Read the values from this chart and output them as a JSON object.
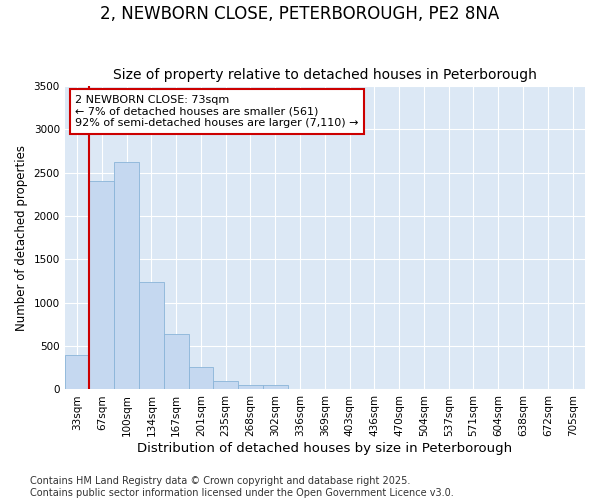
{
  "title": "2, NEWBORN CLOSE, PETERBOROUGH, PE2 8NA",
  "subtitle": "Size of property relative to detached houses in Peterborough",
  "xlabel": "Distribution of detached houses by size in Peterborough",
  "ylabel": "Number of detached properties",
  "categories": [
    "33sqm",
    "67sqm",
    "100sqm",
    "134sqm",
    "167sqm",
    "201sqm",
    "235sqm",
    "268sqm",
    "302sqm",
    "336sqm",
    "369sqm",
    "403sqm",
    "436sqm",
    "470sqm",
    "504sqm",
    "537sqm",
    "571sqm",
    "604sqm",
    "638sqm",
    "672sqm",
    "705sqm"
  ],
  "values": [
    400,
    2400,
    2620,
    1240,
    640,
    260,
    100,
    55,
    55,
    0,
    0,
    0,
    0,
    0,
    0,
    0,
    0,
    0,
    0,
    0,
    0
  ],
  "bar_color": "#c5d8f0",
  "bar_edge_color": "#8ab4d8",
  "vline_x": 0.5,
  "vline_color": "#cc0000",
  "annotation_text": "2 NEWBORN CLOSE: 73sqm\n← 7% of detached houses are smaller (561)\n92% of semi-detached houses are larger (7,110) →",
  "annotation_box_color": "#ffffff",
  "annotation_box_edge": "#cc0000",
  "ylim": [
    0,
    3500
  ],
  "yticks": [
    0,
    500,
    1000,
    1500,
    2000,
    2500,
    3000,
    3500
  ],
  "figure_bg": "#ffffff",
  "plot_bg": "#dce8f5",
  "grid_color": "#ffffff",
  "footer_line1": "Contains HM Land Registry data © Crown copyright and database right 2025.",
  "footer_line2": "Contains public sector information licensed under the Open Government Licence v3.0.",
  "title_fontsize": 12,
  "subtitle_fontsize": 10,
  "xlabel_fontsize": 9.5,
  "ylabel_fontsize": 8.5,
  "tick_fontsize": 7.5,
  "annotation_fontsize": 8,
  "footer_fontsize": 7
}
